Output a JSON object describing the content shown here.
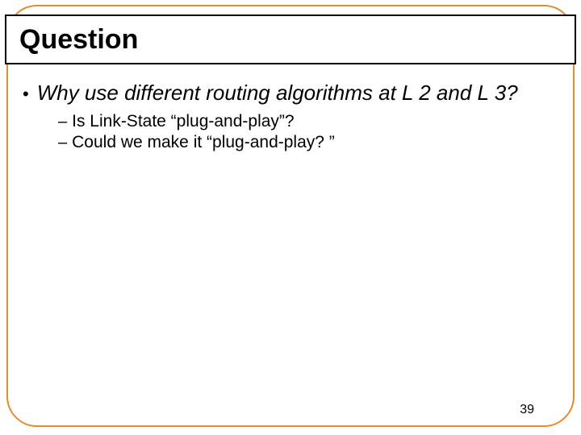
{
  "styles": {
    "frame_color": "#e48b2c",
    "background_color": "#ffffff",
    "title_fontsize": 34,
    "bullet_fontsize": 26,
    "sub_fontsize": 21,
    "pagenum_fontsize": 16,
    "text_color": "#000000"
  },
  "title": "Question",
  "bullets": [
    {
      "text": "Why use different routing algorithms at L 2 and L 3?",
      "subs": [
        "Is Link-State “plug-and-play”?",
        "Could we make it “plug-and-play? ”"
      ]
    }
  ],
  "page_number": "39"
}
